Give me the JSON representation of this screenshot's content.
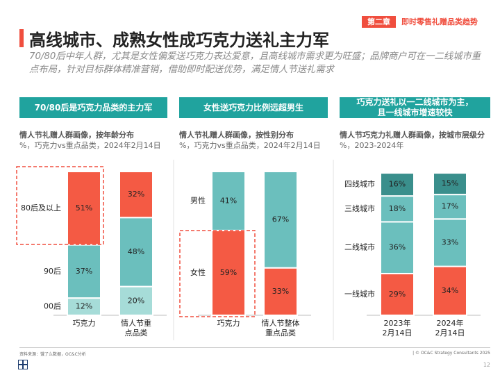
{
  "header": {
    "chapter_tag": "第二章",
    "chapter_name": "即时零售礼赠品类趋势",
    "title": "高线城市、成熟女性成巧克力送礼主力军",
    "subtitle": "70/80后中年人群，尤其是女性偏爱送巧克力表达爱意，且高线城市需求更为旺盛；品牌商户可在一二线城市重点布局，针对目标群体精准营销，借助即时配送优势，满足情人节送礼需求"
  },
  "panels": [
    {
      "head": "70/80后是巧克力品类的主力军",
      "label_bold": "情人节礼赠人群画像，按年龄分布",
      "label_sub": "%，巧克力vs重点品类，2024年2月14日"
    },
    {
      "head": "女性送巧克力比例远超男生",
      "label_bold": "情人节礼赠人群画像，按性别分布",
      "label_sub": "%，巧克力vs重点品类，2024年2月14日"
    },
    {
      "head_line1": "巧克力送礼以一二线城市为主，",
      "head_line2": "且一线城市增速较快",
      "label_bold": "情人节巧克力礼赠人群画像，按城市层级分",
      "label_sub": "%，2023-2024年"
    }
  ],
  "colors": {
    "red": "#f45a44",
    "teal": "#6bbfbd",
    "light_teal": "#a6dcd8",
    "dark_teal": "#3a8f8c",
    "header_teal": "#20a39e"
  },
  "chart_data": [
    {
      "type": "bar",
      "stacked": true,
      "title": "情人节礼赠人群画像，按年龄分布",
      "categories": [
        "巧克力",
        "情人节重点品类"
      ],
      "category_lines": [
        [
          "巧克力"
        ],
        [
          "情人节重",
          "点品类"
        ]
      ],
      "series": [
        {
          "name": "00后",
          "values": [
            12,
            20
          ],
          "color": "#a6dcd8"
        },
        {
          "name": "90后",
          "values": [
            37,
            48
          ],
          "color": "#6bbfbd"
        },
        {
          "name": "80后及以上",
          "values": [
            51,
            32
          ],
          "color": "#f45a44"
        }
      ],
      "highlight": "80后及以上",
      "ylim": [
        0,
        100
      ]
    },
    {
      "type": "bar",
      "stacked": true,
      "title": "情人节礼赠人群画像，按性别分布",
      "categories": [
        "巧克力",
        "情人节整体重点品类"
      ],
      "category_lines": [
        [
          "巧克力"
        ],
        [
          "情人节整体",
          "重点品类"
        ]
      ],
      "series": [
        {
          "name": "女性",
          "values": [
            59,
            33
          ],
          "color": "#f45a44"
        },
        {
          "name": "男性",
          "values": [
            41,
            67
          ],
          "color": "#6bbfbd"
        }
      ],
      "highlight": "女性",
      "ylim": [
        0,
        100
      ]
    },
    {
      "type": "bar",
      "stacked": true,
      "title": "情人节巧克力礼赠人群画像，按城市层级分",
      "categories": [
        "2023年2月14日",
        "2024年2月14日"
      ],
      "category_lines": [
        [
          "2023年",
          "2月14日"
        ],
        [
          "2024年",
          "2月14日"
        ]
      ],
      "series": [
        {
          "name": "一线城市",
          "values": [
            29,
            34
          ],
          "color": "#f45a44"
        },
        {
          "name": "二线城市",
          "values": [
            36,
            33
          ],
          "color": "#6bbfbd"
        },
        {
          "name": "三线城市",
          "values": [
            18,
            17
          ],
          "color": "#6bbfbd"
        },
        {
          "name": "四线城市",
          "values": [
            16,
            15
          ],
          "color": "#3a8f8c"
        }
      ],
      "ylim": [
        0,
        100
      ]
    }
  ],
  "footer": {
    "source": "资料来源：饿了么数据，OC&C分析",
    "copyright": "| © OC&C Strategy Consultants 2025",
    "page": "12"
  }
}
